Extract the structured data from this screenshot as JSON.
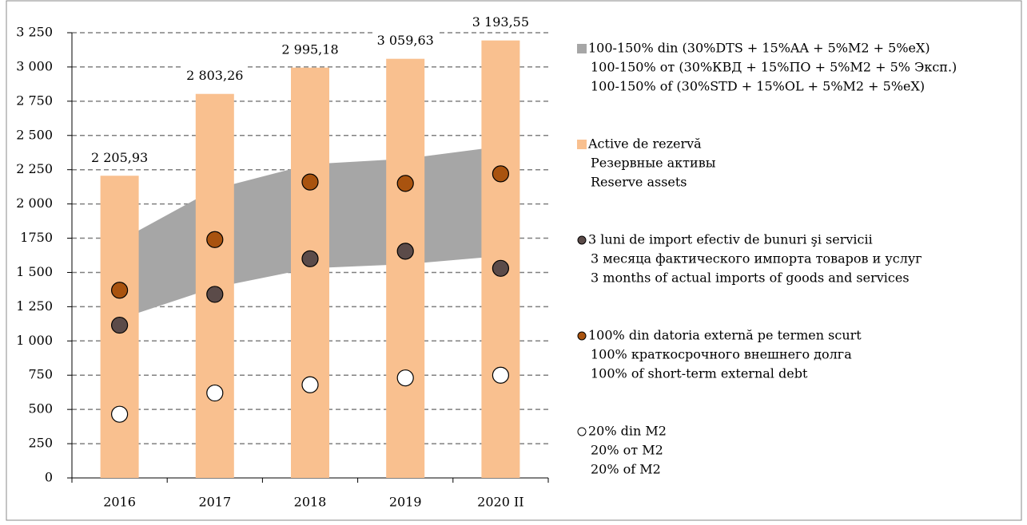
{
  "chart_data": {
    "type": "bar",
    "categories": [
      "2016",
      "2017",
      "2018",
      "2019",
      "2020 II"
    ],
    "ylim": [
      0,
      3250
    ],
    "yticks": [
      0,
      250,
      500,
      750,
      {
        "value": 1000,
        "label": "1 000"
      },
      {
        "value": 1250,
        "label": "1 250"
      },
      {
        "value": 1500,
        "label": "1 500"
      },
      {
        "value": 1750,
        "label": "1750"
      },
      {
        "value": 2000,
        "label": "2 000"
      },
      {
        "value": 2250,
        "label": "2 250"
      },
      {
        "value": 2500,
        "label": "2 500"
      },
      {
        "value": 2750,
        "label": "2 750"
      },
      {
        "value": 3000,
        "label": "3 000"
      },
      {
        "value": 3250,
        "label": "3 250"
      }
    ],
    "grid": true,
    "series": [
      {
        "type": "range",
        "name": [
          "100-150% din (30%DTS + 15%AA + 5%M2 + 5%eX)",
          "100-150% от (30%КВД  + 15%ПО + 5%M2 + 5% Эксп.)",
          "100-150% of (30%STD + 15%OL + 5%M2 + 5%eX)"
        ],
        "color": "#a6a6a6",
        "low": [
          1160,
          1390,
          1530,
          1560,
          1620
        ],
        "values": [
          1730,
          2110,
          2290,
          2330,
          2420
        ]
      },
      {
        "type": "bar",
        "name": [
          "Active de rezervă",
          "Резервные активы",
          "Reserve assets"
        ],
        "color": "#f9c08f",
        "values": [
          2205.93,
          2803.26,
          2995.18,
          3059.63,
          3193.55
        ],
        "value_labels": [
          "2 205,93",
          "2 803,26",
          "2 995,18",
          "3 059,63",
          "3 193,55"
        ]
      },
      {
        "type": "dot",
        "name": [
          "3 luni de import efectiv de bunuri şi servicii",
          "3 месяца фактического импорта товаров и услуг",
          "3 months of actual imports of goods and services"
        ],
        "color": "#5b4b49",
        "values": [
          1115,
          1340,
          1600,
          1655,
          1530
        ]
      },
      {
        "type": "dot",
        "name": [
          "100% din datoria externă pe termen scurt",
          "100% краткосрочного внешнего долга",
          "100% of short-term external debt"
        ],
        "color": "#a9530f",
        "values": [
          1370,
          1740,
          2160,
          2150,
          2220
        ]
      },
      {
        "type": "dot",
        "name": [
          "20% din M2",
          "20% от M2",
          "20% of M2"
        ],
        "color": "#ffffff",
        "values": [
          465,
          620,
          680,
          730,
          750
        ]
      }
    ]
  }
}
